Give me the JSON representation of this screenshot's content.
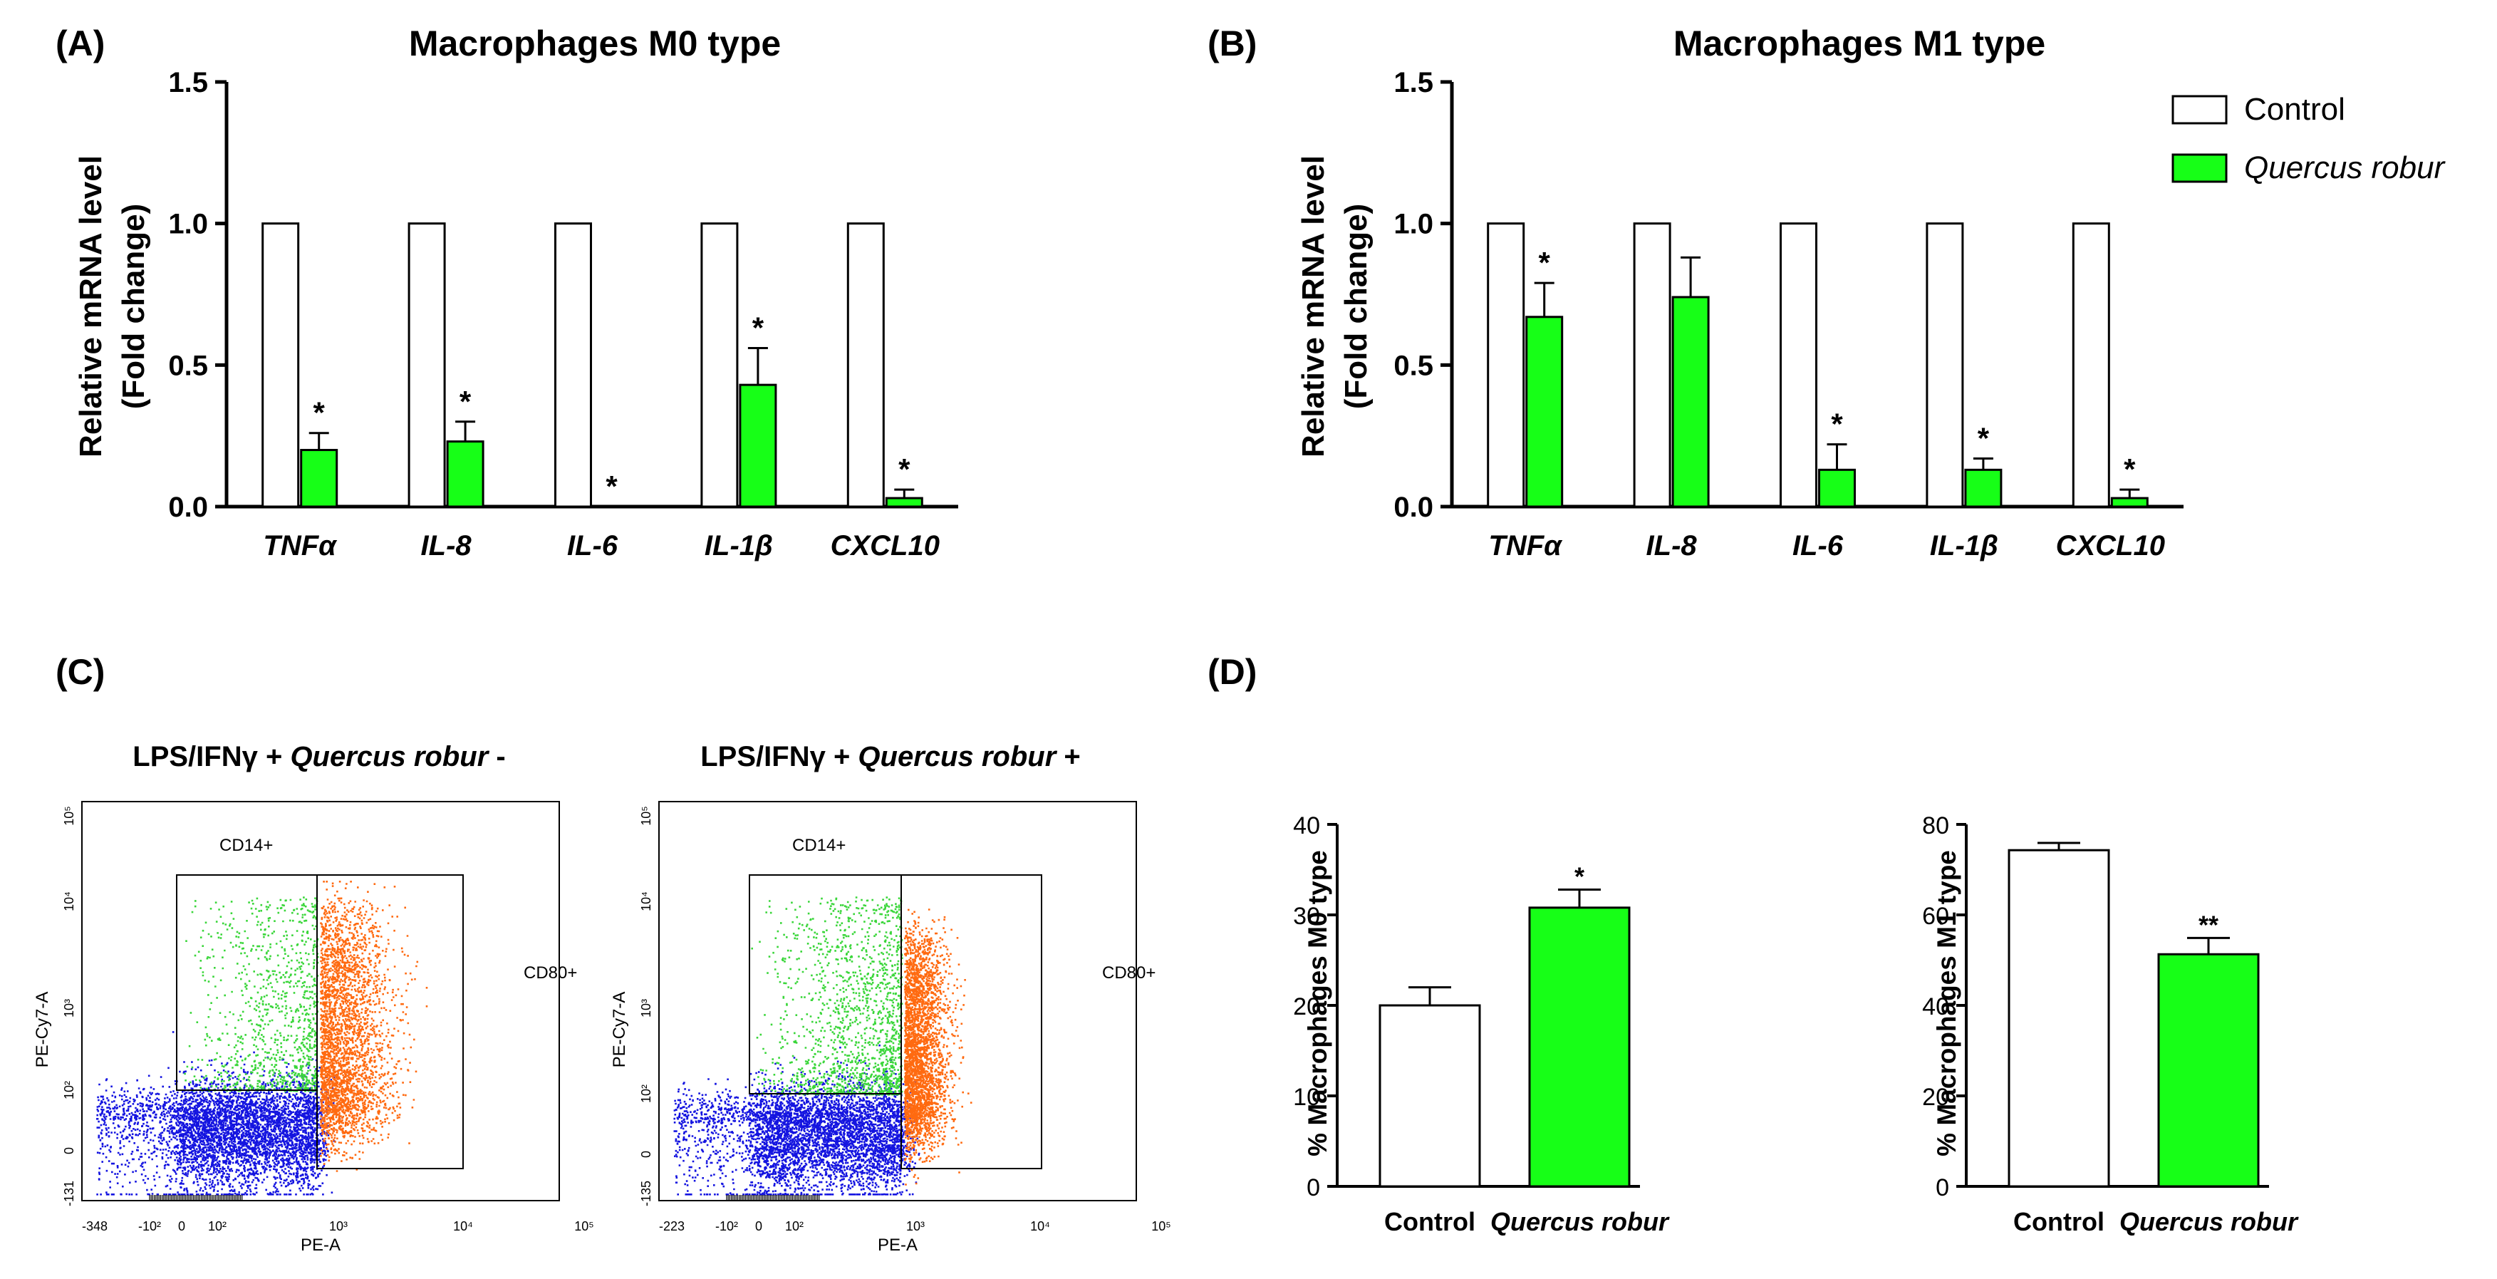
{
  "panels": {
    "A": {
      "label": "(A)"
    },
    "B": {
      "label": "(B)"
    },
    "C": {
      "label": "(C)"
    },
    "D": {
      "label": "(D)"
    }
  },
  "legend": {
    "control": "Control",
    "treated": "Quercus robur"
  },
  "colors": {
    "control_fill": "#ffffff",
    "treated_fill": "#17ff17",
    "green_dots": "#3ad63a",
    "blue_dots": "#1414e0",
    "orange_dots": "#ff6a10"
  },
  "sig": {
    "one": "*",
    "two": "**"
  },
  "chart_data": [
    {
      "id": "A",
      "type": "bar",
      "title": "Macrophages M0 type",
      "ylabel_line1": "Relative mRNA level",
      "ylabel_line2": "(Fold change)",
      "ylim": [
        0,
        1.5
      ],
      "yticks": [
        "0.0",
        "0.5",
        "1.0",
        "1.5"
      ],
      "categories": [
        "TNFα",
        "IL-8",
        "IL-6",
        "IL-1β",
        "CXCL10"
      ],
      "series": [
        {
          "name": "Control",
          "values": [
            1.0,
            1.0,
            1.0,
            1.0,
            1.0
          ]
        },
        {
          "name": "Quercus robur",
          "values": [
            0.2,
            0.23,
            0.0,
            0.43,
            0.03
          ],
          "errors": [
            0.06,
            0.07,
            0,
            0.13,
            0.03
          ]
        }
      ],
      "significance": [
        "*",
        "*",
        "*",
        "*",
        "*"
      ]
    },
    {
      "id": "B",
      "type": "bar",
      "title": "Macrophages M1 type",
      "ylabel_line1": "Relative mRNA level",
      "ylabel_line2": "(Fold change)",
      "ylim": [
        0,
        1.5
      ],
      "yticks": [
        "0.0",
        "0.5",
        "1.0",
        "1.5"
      ],
      "categories": [
        "TNFα",
        "IL-8",
        "IL-6",
        "IL-1β",
        "CXCL10"
      ],
      "series": [
        {
          "name": "Control",
          "values": [
            1.0,
            1.0,
            1.0,
            1.0,
            1.0
          ]
        },
        {
          "name": "Quercus robur",
          "values": [
            0.67,
            0.74,
            0.13,
            0.13,
            0.03
          ],
          "errors": [
            0.12,
            0.14,
            0.09,
            0.04,
            0.03
          ]
        }
      ],
      "significance": [
        "*",
        "",
        "*",
        "*",
        "*"
      ]
    },
    {
      "id": "C1",
      "type": "scatter",
      "title_prefix": "LPS/IFNγ + ",
      "title_italic": "Quercus robur",
      "title_suffix": " -",
      "ylabel": "PE-Cy7-A",
      "xlabel": "PE-A",
      "gate_left": "CD14+",
      "gate_right": "CD80+",
      "xticks": [
        "-348",
        "-10²",
        "0",
        "10²",
        "10³",
        "10⁴",
        "10⁵"
      ],
      "yticks": [
        "-131",
        "0",
        "10²",
        "10³",
        "10⁴",
        "10⁵"
      ]
    },
    {
      "id": "C2",
      "type": "scatter",
      "title_prefix": "LPS/IFNγ + ",
      "title_italic": "Quercus robur",
      "title_suffix": " +",
      "ylabel": "PE-Cy7-A",
      "xlabel": "PE-A",
      "gate_left": "CD14+",
      "gate_right": "CD80+",
      "xticks": [
        "-223",
        "-10²",
        "0",
        "10²",
        "10³",
        "10⁴",
        "10⁵"
      ],
      "yticks": [
        "-135",
        "0",
        "10²",
        "10³",
        "10⁴",
        "10⁵"
      ]
    },
    {
      "id": "D1",
      "type": "bar",
      "ylabel": "% Macrophages M0 type",
      "ylim": [
        0,
        40
      ],
      "yticks": [
        "0",
        "10",
        "20",
        "30",
        "40"
      ],
      "categories": [
        "Control",
        "Quercus robur"
      ],
      "values": [
        20,
        30.8
      ],
      "errors": [
        2.0,
        2.0
      ],
      "significance": [
        "",
        "*"
      ]
    },
    {
      "id": "D2",
      "type": "bar",
      "ylabel": "% Macrophages M1 type",
      "ylim": [
        0,
        80
      ],
      "yticks": [
        "0",
        "20",
        "40",
        "60",
        "80"
      ],
      "categories": [
        "Control",
        "Quercus robur"
      ],
      "values": [
        74.3,
        51.3
      ],
      "errors": [
        1.6,
        3.6
      ],
      "significance": [
        "",
        "**"
      ]
    }
  ]
}
